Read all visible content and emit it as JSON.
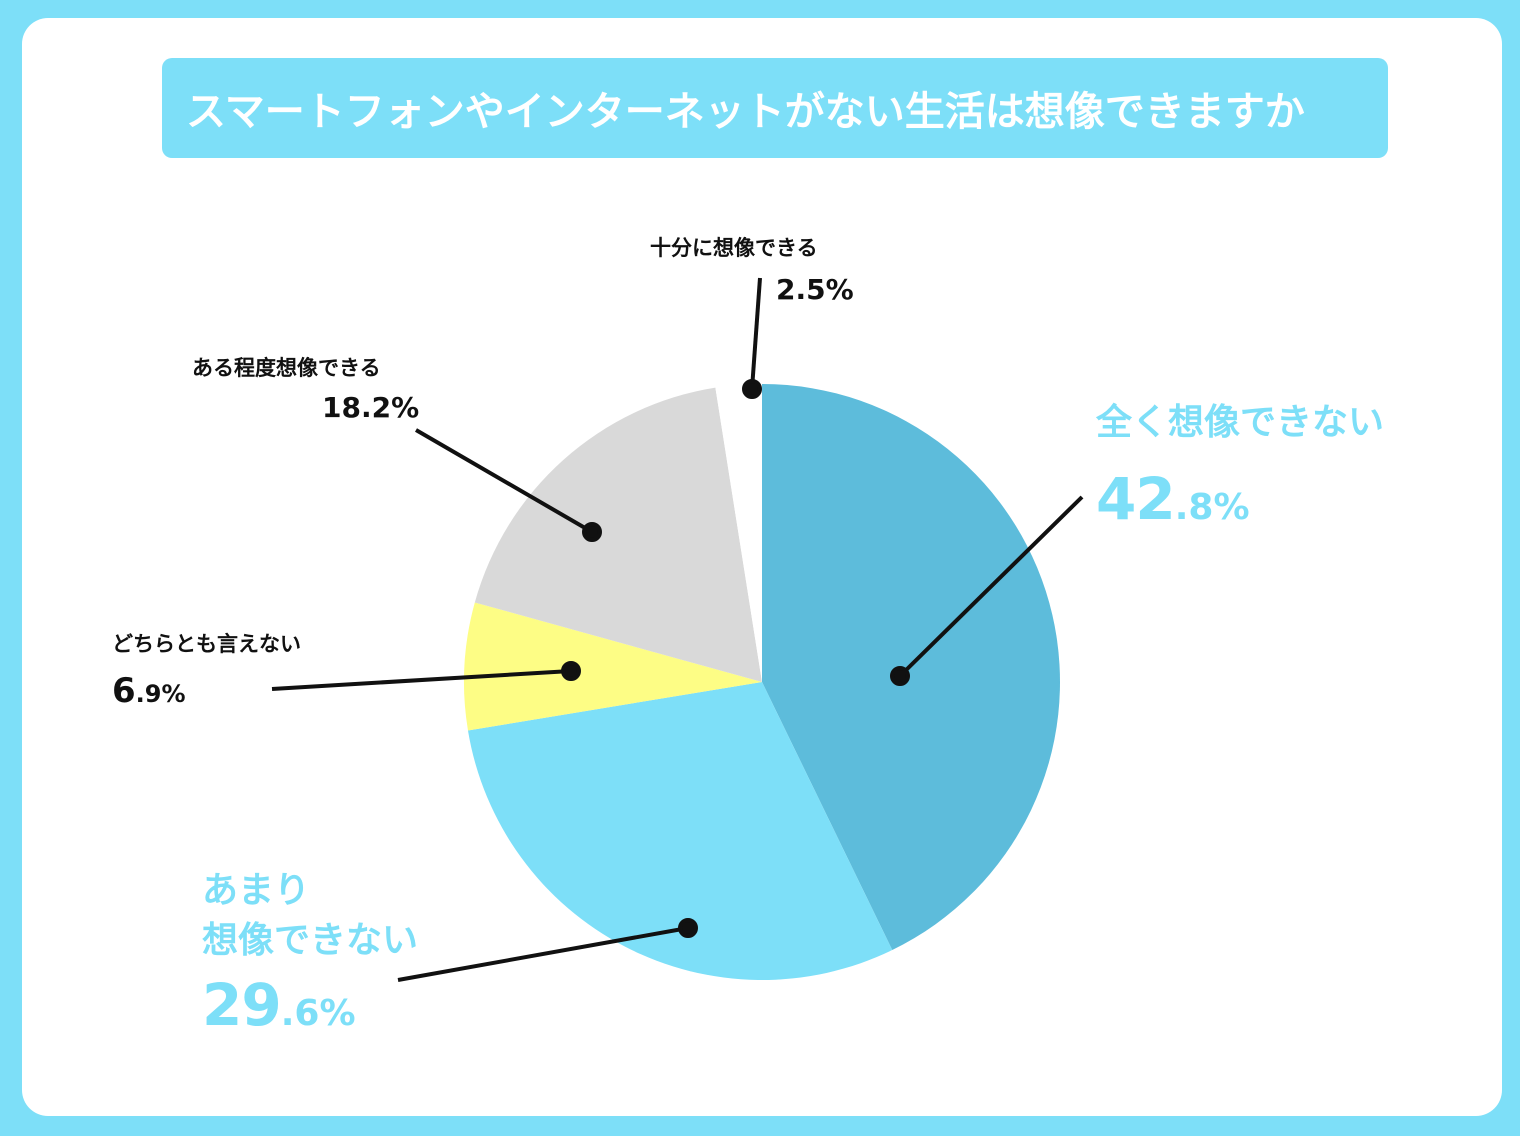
{
  "title": "スマートフォンやインターネットがない生活は想像できますか",
  "colors": {
    "background": "#7ddff8",
    "card": "#ffffff",
    "accent_text": "#7ddff8",
    "dark_text": "#111111"
  },
  "chart_data": {
    "type": "pie",
    "title": "スマートフォンやインターネットがない生活は想像できますか",
    "start_angle_deg": 0,
    "direction": "clockwise",
    "slices": [
      {
        "label": "全く想像できない",
        "value": 42.8,
        "display": "42.8%",
        "color": "#5dbcdb"
      },
      {
        "label": "あまり想像できない",
        "value": 29.6,
        "display": "29.6%",
        "color": "#7ddff8"
      },
      {
        "label": "どちらとも言えない",
        "value": 6.9,
        "display": "6.9%",
        "color": "#fdfd85"
      },
      {
        "label": "ある程度想像できる",
        "value": 18.2,
        "display": "18.2%",
        "color": "#d9d9d9"
      },
      {
        "label": "十分に想像できる",
        "value": 2.5,
        "display": "2.5%",
        "color": "#ffffff"
      }
    ]
  },
  "labels": {
    "s0": {
      "name": "全く想像できない",
      "int": "42",
      "dec": ".8%"
    },
    "s1": {
      "name_line1": "あまり",
      "name_line2": "想像できない",
      "int": "29",
      "dec": ".6%"
    },
    "s2": {
      "name": "どちらとも言えない",
      "int": "6",
      "dec": ".9%"
    },
    "s3": {
      "name": "ある程度想像できる",
      "pct": "18.2%"
    },
    "s4": {
      "name": "十分に想像できる",
      "pct": "2.5%"
    }
  }
}
